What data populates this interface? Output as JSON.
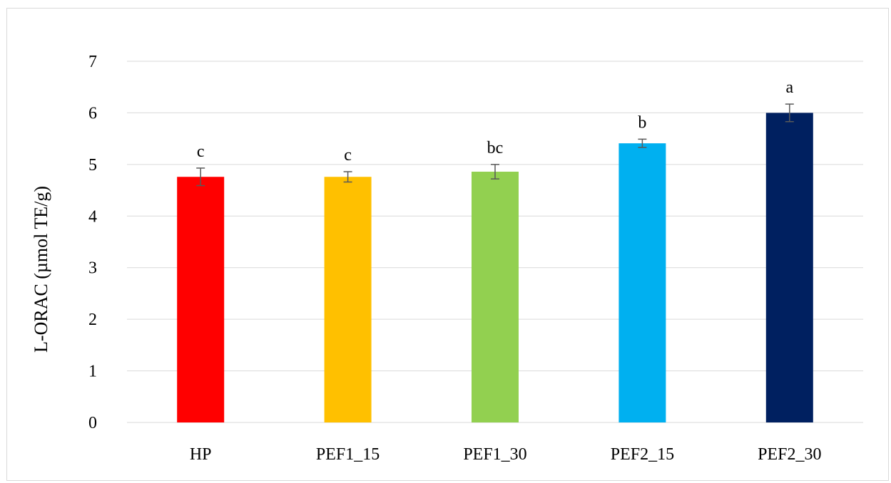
{
  "chart_data": {
    "type": "bar",
    "title": "",
    "xlabel": "",
    "ylabel": "L-ORAC (µmol TE/g)",
    "ylim": [
      0,
      7
    ],
    "yticks": [
      0,
      1,
      2,
      3,
      4,
      5,
      6,
      7
    ],
    "grid": true,
    "legend": "none",
    "categories": [
      "HP",
      "PEF1_15",
      "PEF1_30",
      "PEF2_15",
      "PEF2_30"
    ],
    "values": [
      4.76,
      4.76,
      4.86,
      5.41,
      6.0
    ],
    "errors": [
      0.17,
      0.1,
      0.14,
      0.08,
      0.17
    ],
    "significance_letters": [
      "c",
      "c",
      "bc",
      "b",
      "a"
    ],
    "colors": [
      "#ff0000",
      "#ffc000",
      "#92d050",
      "#00b0f0",
      "#002060"
    ]
  }
}
